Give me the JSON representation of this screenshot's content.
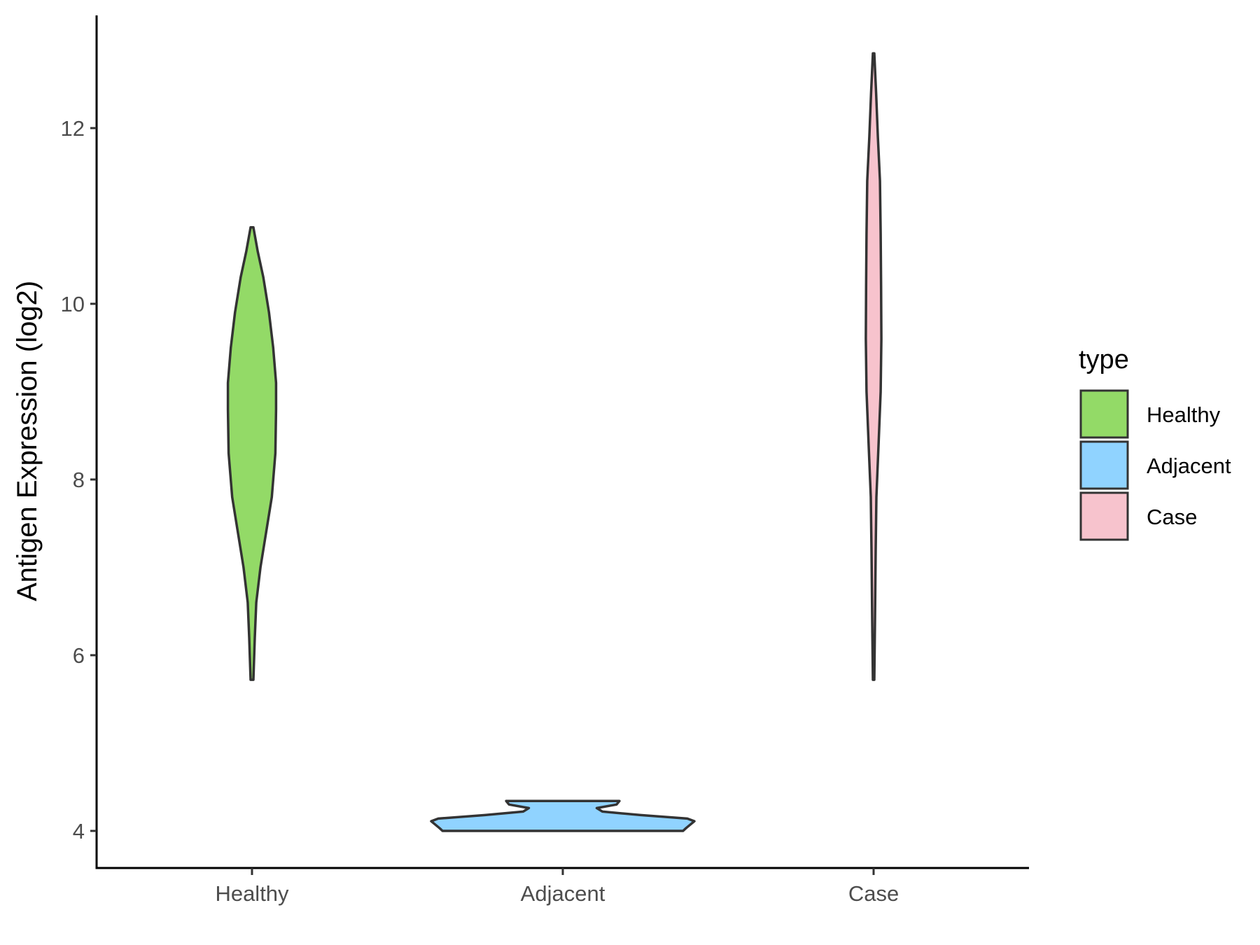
{
  "chart_data": {
    "type": "violin",
    "title": "",
    "xlabel": "",
    "ylabel": "Antigen Expression (log2)",
    "categories": [
      "Healthy",
      "Adjacent",
      "Case"
    ],
    "ylim": [
      3.6,
      13.5
    ],
    "yticks": [
      4,
      6,
      8,
      10,
      12
    ],
    "grid": false,
    "legend": {
      "title": "type",
      "position": "right",
      "entries": [
        "Healthy",
        "Adjacent",
        "Case"
      ]
    },
    "colors": {
      "Healthy": "#93da67",
      "Adjacent": "#90d3ff",
      "Case": "#f7c3cd",
      "outline": "#333333"
    },
    "series": [
      {
        "name": "Healthy",
        "min": 5.72,
        "max": 10.87,
        "density": [
          [
            5.72,
            0.01
          ],
          [
            6.2,
            0.02
          ],
          [
            6.6,
            0.03
          ],
          [
            7.0,
            0.06
          ],
          [
            7.4,
            0.1
          ],
          [
            7.8,
            0.14
          ],
          [
            8.3,
            0.165
          ],
          [
            8.8,
            0.17
          ],
          [
            9.1,
            0.17
          ],
          [
            9.5,
            0.15
          ],
          [
            9.9,
            0.12
          ],
          [
            10.3,
            0.08
          ],
          [
            10.6,
            0.04
          ],
          [
            10.87,
            0.01
          ]
        ]
      },
      {
        "name": "Adjacent",
        "min": 4.0,
        "max": 4.34,
        "density": [
          [
            4.0,
            0.85
          ],
          [
            4.03,
            0.87
          ],
          [
            4.07,
            0.9
          ],
          [
            4.11,
            0.93
          ],
          [
            4.14,
            0.88
          ],
          [
            4.18,
            0.55
          ],
          [
            4.22,
            0.28
          ],
          [
            4.26,
            0.24
          ],
          [
            4.3,
            0.38
          ],
          [
            4.34,
            0.4
          ]
        ]
      },
      {
        "name": "Case",
        "min": 5.72,
        "max": 12.85,
        "density": [
          [
            5.72,
            0.005
          ],
          [
            6.4,
            0.01
          ],
          [
            7.2,
            0.015
          ],
          [
            7.8,
            0.02
          ],
          [
            8.4,
            0.035
          ],
          [
            9.0,
            0.05
          ],
          [
            9.6,
            0.055
          ],
          [
            10.2,
            0.053
          ],
          [
            10.8,
            0.05
          ],
          [
            11.4,
            0.045
          ],
          [
            11.9,
            0.03
          ],
          [
            12.4,
            0.018
          ],
          [
            12.85,
            0.005
          ]
        ]
      }
    ]
  }
}
